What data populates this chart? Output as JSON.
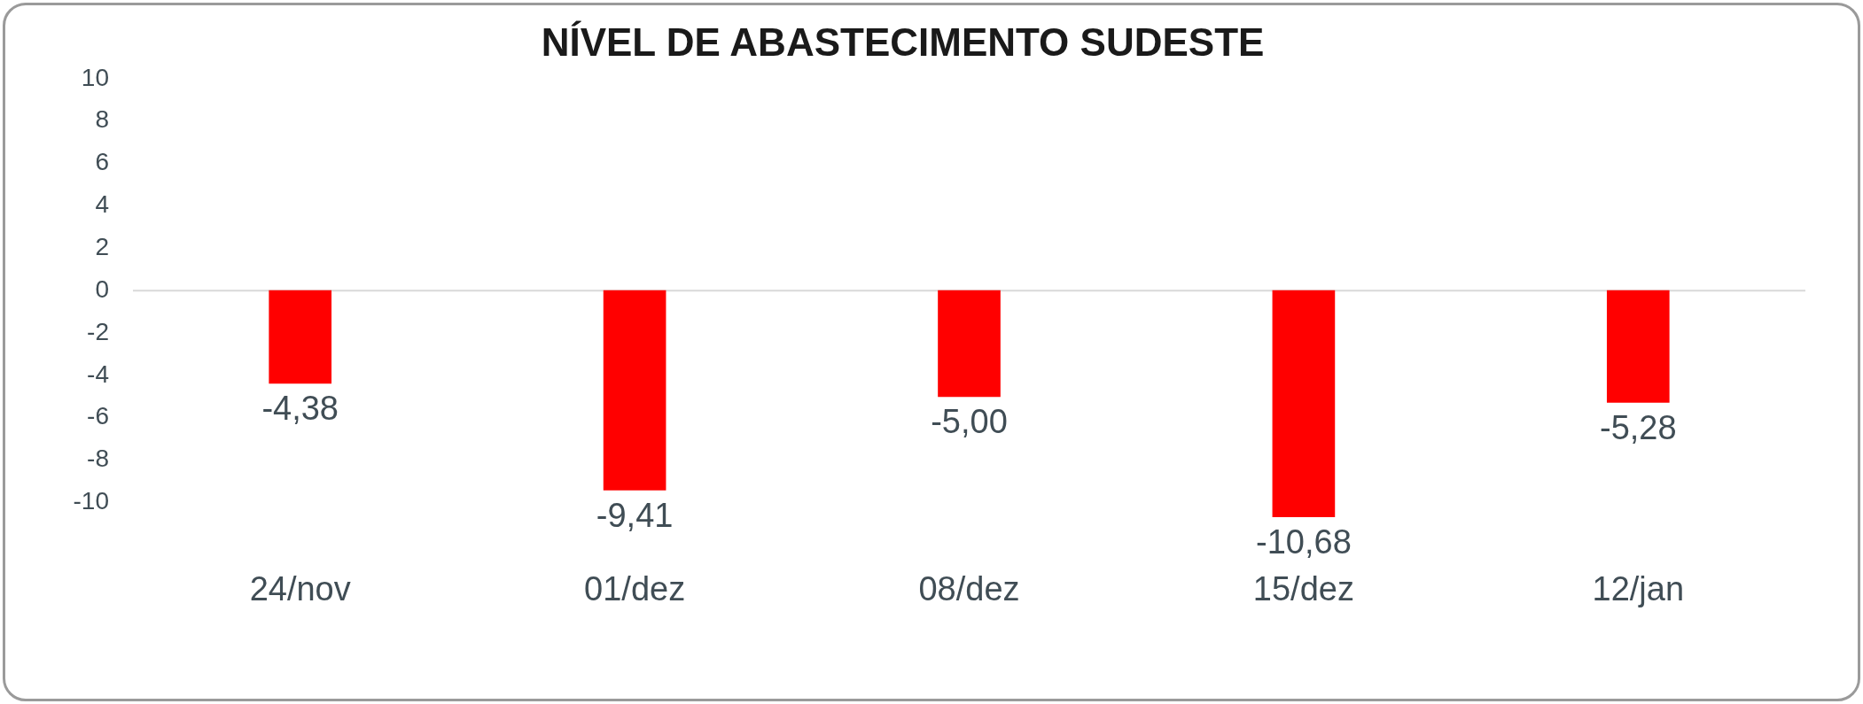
{
  "chart_data": {
    "type": "bar",
    "title": "NÍVEL DE ABASTECIMENTO SUDESTE",
    "categories": [
      "24/nov",
      "01/dez",
      "08/dez",
      "15/dez",
      "12/jan"
    ],
    "values": [
      -4.38,
      -9.41,
      -5.0,
      -10.68,
      -5.28
    ],
    "value_labels": [
      "-4,38",
      "-9,41",
      "-5,00",
      "-10,68",
      "-5,28"
    ],
    "color": "#ff0000",
    "ylim": [
      -11,
      10
    ],
    "yticks": [
      -10,
      -8,
      -6,
      -4,
      -2,
      0,
      2,
      4,
      6,
      8,
      10
    ],
    "ref_lines": [
      {
        "axis": "y",
        "value": 0,
        "color": "#d9d9d9"
      }
    ],
    "grid": false,
    "legend": false
  }
}
